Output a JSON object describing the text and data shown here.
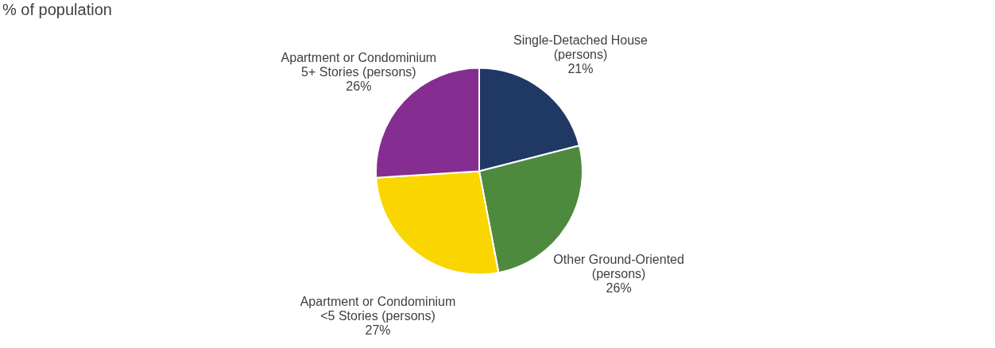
{
  "chart_data": {
    "type": "pie",
    "title": "% of population",
    "categories": [
      "Single-Detached House (persons)",
      "Other Ground-Oriented (persons)",
      "Apartment or Condominium <5 Stories (persons)",
      "Apartment or Condominium 5+ Stories (persons)"
    ],
    "values": [
      21,
      26,
      27,
      26
    ],
    "colors": [
      "#1f3864",
      "#4e8a3e",
      "#f9d600",
      "#862d91"
    ],
    "value_labels": [
      "21%",
      "26%",
      "27%",
      "26%"
    ],
    "legend": false
  }
}
